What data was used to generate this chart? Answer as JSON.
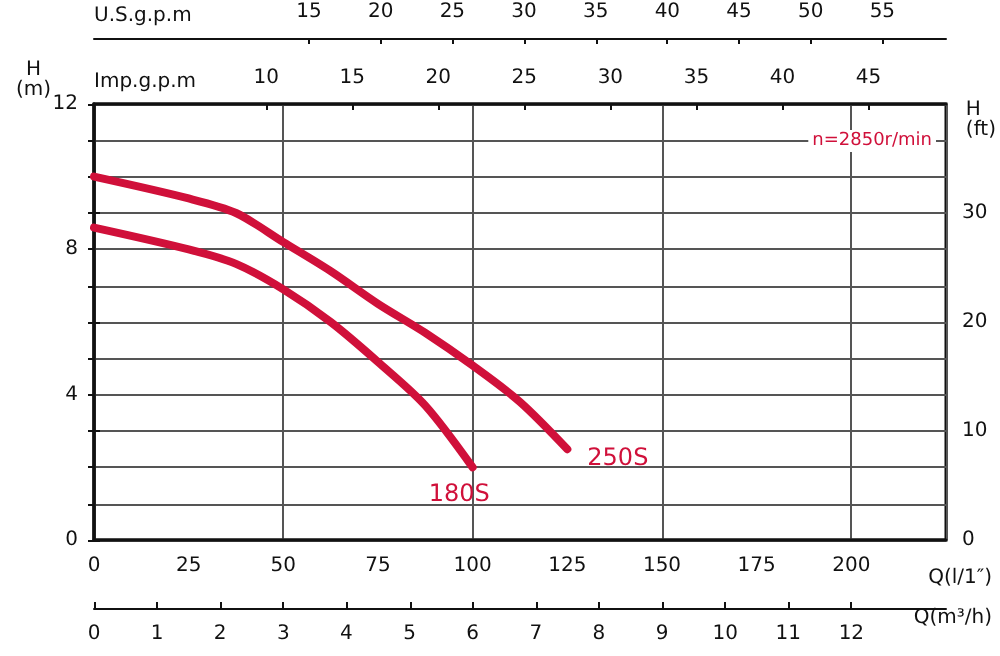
{
  "chart_data": {
    "type": "line",
    "xlabel": "Q(l/1″)",
    "ylabel": "H\n(m)",
    "y2label": "H\n(ft)",
    "x2label": "Imp.g.p.m",
    "xlim": [
      0,
      225
    ],
    "xticks": [
      0,
      25,
      50,
      75,
      100,
      125,
      150,
      175,
      200
    ],
    "ylim": [
      0,
      12
    ],
    "yticks": [
      0,
      {
        "value": 1,
        "label": null
      },
      {
        "value": 2,
        "label": null
      },
      {
        "value": 3,
        "label": null
      },
      4,
      {
        "value": 5,
        "label": null
      },
      {
        "value": 6,
        "label": null
      },
      {
        "value": 7,
        "label": null
      },
      8,
      {
        "value": 9,
        "label": null
      },
      {
        "value": 10,
        "label": null
      },
      {
        "value": 11,
        "label": null
      },
      12
    ],
    "y2lim": [
      0,
      40
    ],
    "y2ticks": [
      0,
      10,
      20,
      30
    ],
    "x2lim": [
      0,
      49.5
    ],
    "x2ticks": [
      10,
      15,
      20,
      25,
      30,
      35,
      40,
      45
    ],
    "grid": true,
    "legend": false,
    "marker": "none",
    "line_style": "solid",
    "annotations": [
      "n=2850r/min",
      "U.S.g.p.m",
      "15",
      "20",
      "25",
      "30",
      "35",
      "40",
      "45",
      "50",
      "55",
      "Q(m³/h)",
      "0",
      "1",
      "2",
      "3",
      "4",
      "5",
      "6",
      "7",
      "8",
      "9",
      "10",
      "11",
      "12"
    ],
    "series": [
      {
        "name": "180S",
        "color": "#d0103a",
        "x": [
          0,
          25,
          37.5,
          50,
          62.5,
          75,
          87.5,
          100
        ],
        "values": [
          8.6,
          8.0,
          7.6,
          6.9,
          6.0,
          4.9,
          3.7,
          2.0
        ]
      },
      {
        "name": "250S",
        "color": "#d0103a",
        "x": [
          0,
          25,
          37.5,
          50,
          62.5,
          75,
          87.5,
          100,
          112.5,
          125
        ],
        "values": [
          10.0,
          9.4,
          9.0,
          8.2,
          7.4,
          6.5,
          5.7,
          4.8,
          3.8,
          2.5
        ]
      }
    ]
  }
}
